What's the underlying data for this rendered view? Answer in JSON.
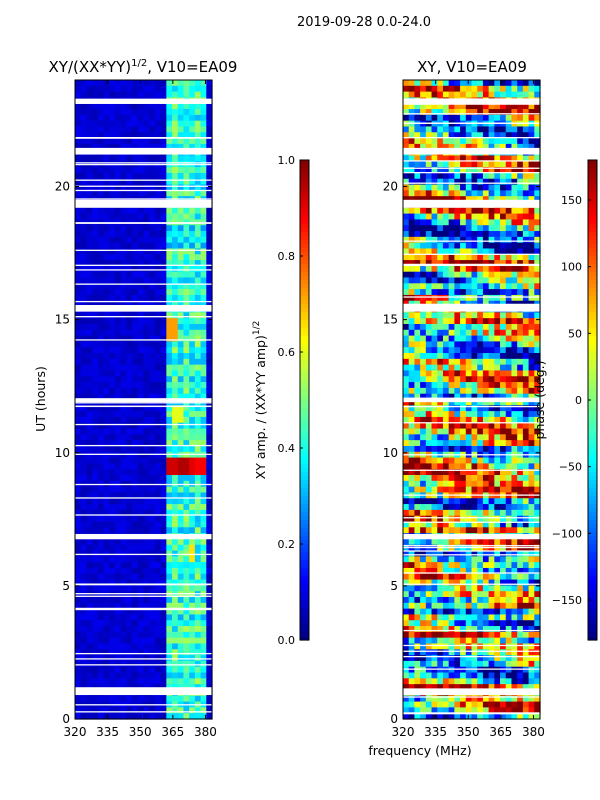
{
  "figure_title": "2019-09-28 0.0-24.0",
  "colors": {
    "background": "#ffffff",
    "axis": "#000000",
    "gap": "#ffffff",
    "jet": [
      "#00007f",
      "#0000ff",
      "#007fff",
      "#00ffff",
      "#7fff7f",
      "#ffff00",
      "#ff7f00",
      "#ff0000",
      "#7f0000"
    ]
  },
  "chart_data": [
    {
      "type": "heatmap",
      "title_base": "XY/(XX*YY)",
      "title_exponent": "1/2",
      "title_suffix": ", V10=EA09",
      "xlabel": "",
      "ylabel": "UT (hours)",
      "xlim": [
        320,
        383
      ],
      "ylim": [
        0,
        24
      ],
      "xticks": [
        320,
        335,
        350,
        365,
        380
      ],
      "yticks": [
        0,
        5,
        10,
        15,
        20
      ],
      "grid": false,
      "description_values": {
        "background_level": 0.05,
        "bright_band_mhz": [
          361,
          381
        ],
        "bright_band_level": 0.45,
        "hot_spots": [
          {
            "ut": 9.5,
            "freq": 364,
            "level": 0.92
          },
          {
            "ut": 9.5,
            "freq": 369,
            "level": 0.95
          },
          {
            "ut": 9.5,
            "freq": 373,
            "level": 0.9
          },
          {
            "ut": 9.5,
            "freq": 377,
            "level": 0.88
          },
          {
            "ut": 14.6,
            "freq": 364,
            "level": 0.72
          },
          {
            "ut": 11.4,
            "freq": 368,
            "level": 0.6
          },
          {
            "ut": 6.2,
            "freq": 374,
            "level": 0.65
          }
        ]
      },
      "gaps_ut": [
        [
          0.9,
          1.15
        ],
        [
          6.75,
          6.95
        ],
        [
          11.9,
          12.05
        ],
        [
          15.3,
          15.55
        ],
        [
          19.2,
          19.5
        ],
        [
          21.2,
          21.45
        ],
        [
          23.1,
          23.3
        ]
      ],
      "colorbar": {
        "label_base": "XY amp. / (XX*YY amp)",
        "label_exponent": "1/2",
        "vmin": 0.0,
        "vmax": 1.0,
        "ticks": [
          "0.0",
          "0.2",
          "0.4",
          "0.6",
          "0.8",
          "1.0"
        ]
      }
    },
    {
      "type": "heatmap",
      "title": "XY, V10=EA09",
      "xlabel": "frequency (MHz)",
      "ylabel": "",
      "xlim": [
        320,
        383
      ],
      "ylim": [
        0,
        24
      ],
      "xticks": [
        320,
        335,
        350,
        365,
        380
      ],
      "yticks": [
        0,
        5,
        10,
        15,
        20
      ],
      "grid": false,
      "description_values": {
        "value_range_deg": [
          -180,
          180
        ],
        "pattern": "noisy phase, horizontal streaks"
      },
      "gaps_ut": [
        [
          0.9,
          1.15
        ],
        [
          6.75,
          6.95
        ],
        [
          11.9,
          12.05
        ],
        [
          15.3,
          15.55
        ],
        [
          19.2,
          19.5
        ],
        [
          21.2,
          21.45
        ],
        [
          23.1,
          23.3
        ]
      ],
      "colorbar": {
        "label": "phase (deg.)",
        "vmin": -180,
        "vmax": 180,
        "ticks": [
          "150",
          "100",
          "50",
          "0",
          "−50",
          "−100",
          "−150"
        ],
        "tick_values": [
          150,
          100,
          50,
          0,
          -50,
          -100,
          -150
        ]
      }
    }
  ]
}
